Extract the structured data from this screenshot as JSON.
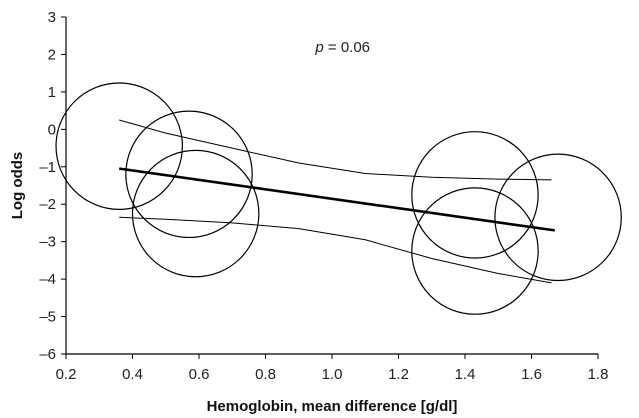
{
  "chart_data": {
    "type": "scatter",
    "title": "",
    "xlabel": "Hemoglobin, mean difference [g/dl]",
    "ylabel": "Log odds",
    "xlim": [
      0.2,
      1.8
    ],
    "ylim": [
      -6,
      3
    ],
    "x_ticks": [
      0.2,
      0.4,
      0.6,
      0.8,
      1.0,
      1.2,
      1.4,
      1.6,
      1.8
    ],
    "x_tick_labels": [
      "0.2",
      "0.4",
      "0.6",
      "0.8",
      "1.0",
      "1.2",
      "1.4",
      "1.6",
      "1.8"
    ],
    "y_ticks": [
      3,
      2,
      1,
      0,
      -1,
      -2,
      -3,
      -4,
      -5,
      -6
    ],
    "y_tick_labels": [
      "3",
      "2",
      "1",
      "0",
      "–1",
      "–2",
      "–3",
      "–4",
      "–5",
      "–6"
    ],
    "grid": false,
    "legend": "none",
    "annotation": {
      "prefix": "p",
      "text": " = 0.06",
      "x": 0.95,
      "y": 2.2
    },
    "points": [
      {
        "x": 0.36,
        "y": -0.45,
        "r": 0.19
      },
      {
        "x": 0.57,
        "y": -1.2,
        "r": 0.19
      },
      {
        "x": 0.59,
        "y": -2.25,
        "r": 0.19
      },
      {
        "x": 1.43,
        "y": -1.75,
        "r": 0.19
      },
      {
        "x": 1.43,
        "y": -3.25,
        "r": 0.19
      },
      {
        "x": 1.68,
        "y": -2.35,
        "r": 0.19
      }
    ],
    "fit_line": {
      "x": [
        0.36,
        1.67
      ],
      "y": [
        -1.05,
        -2.7
      ]
    },
    "ci_upper": {
      "x": [
        0.36,
        0.5,
        0.7,
        0.9,
        1.1,
        1.3,
        1.5,
        1.66
      ],
      "y": [
        0.25,
        -0.1,
        -0.5,
        -0.9,
        -1.18,
        -1.28,
        -1.33,
        -1.35
      ]
    },
    "ci_lower": {
      "x": [
        0.36,
        0.5,
        0.7,
        0.9,
        1.1,
        1.3,
        1.5,
        1.66
      ],
      "y": [
        -2.35,
        -2.4,
        -2.5,
        -2.65,
        -2.95,
        -3.45,
        -3.85,
        -4.1
      ]
    }
  }
}
